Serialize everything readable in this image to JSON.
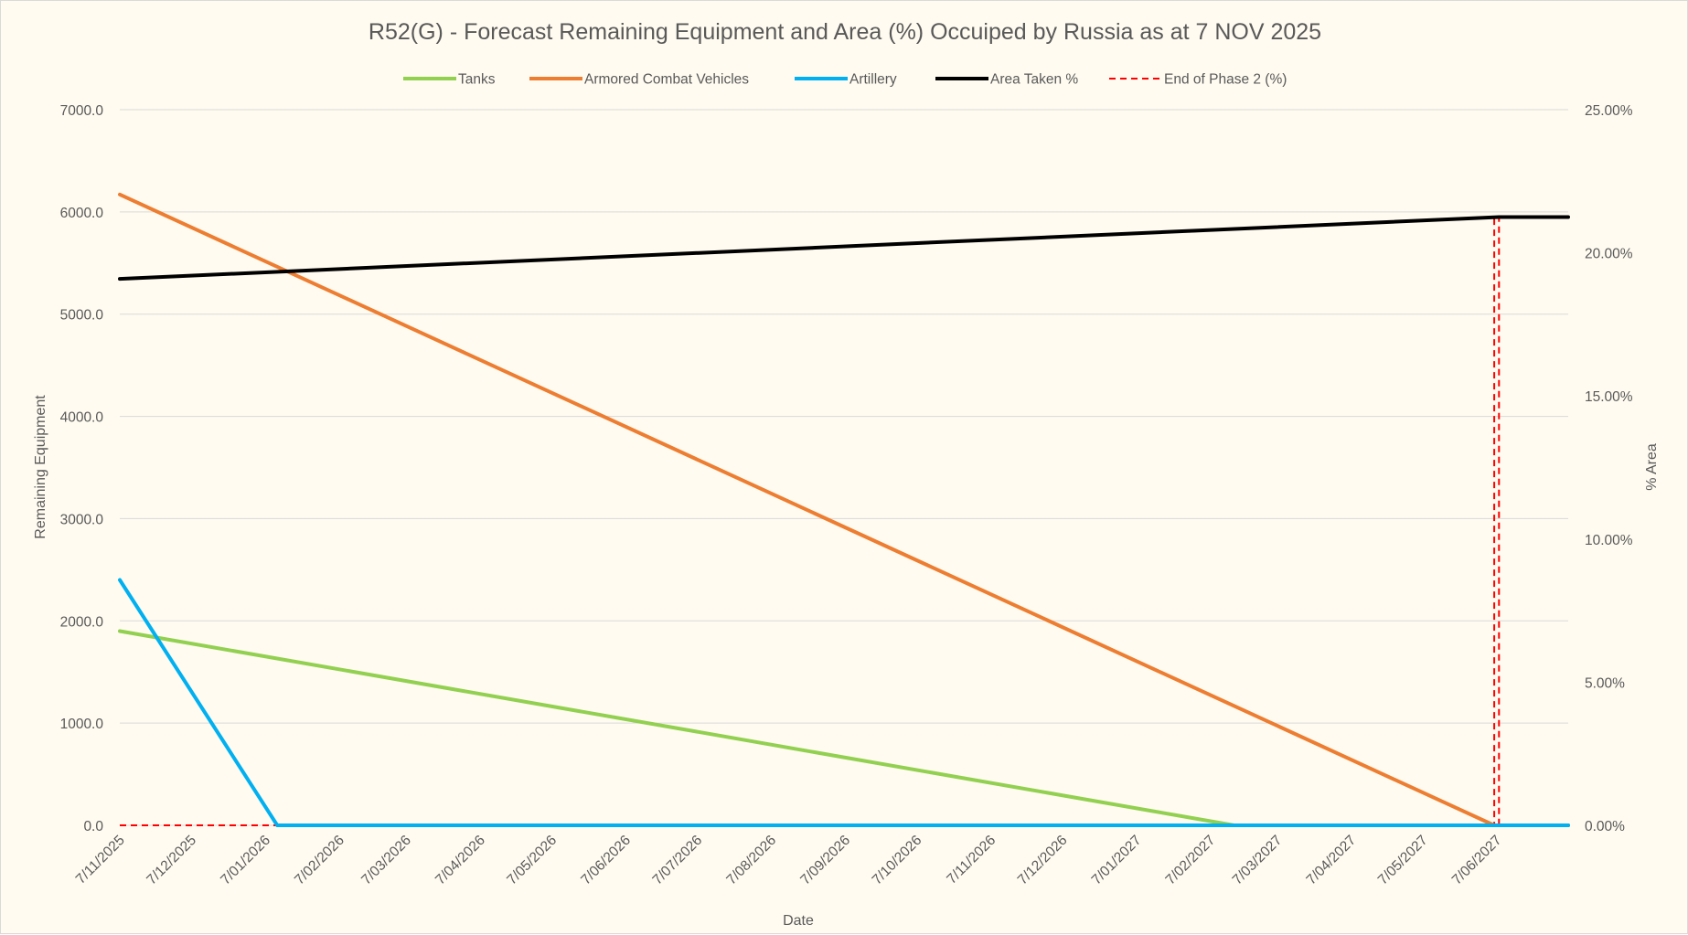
{
  "chart_data": {
    "type": "line",
    "title": "R52(G) - Forecast Remaining Equipment and Area (%) Occuiped by Russia as at 7 NOV 2025",
    "xlabel": "Date",
    "ylabel": "Remaining Equipment",
    "y2label": "% Area",
    "ylim": [
      0,
      7000
    ],
    "y2lim": [
      0,
      0.25
    ],
    "y_ticks": [
      "0.0",
      "1000.0",
      "2000.0",
      "3000.0",
      "4000.0",
      "5000.0",
      "6000.0",
      "7000.0"
    ],
    "y2_ticks": [
      "0.00%",
      "5.00%",
      "10.00%",
      "15.00%",
      "20.00%",
      "25.00%"
    ],
    "x_range": [
      "2025-11-07",
      "2027-07-07"
    ],
    "x_ticks": [
      "7/11/2025",
      "7/12/2025",
      "7/01/2026",
      "7/02/2026",
      "7/03/2026",
      "7/04/2026",
      "7/05/2026",
      "7/06/2026",
      "7/07/2026",
      "7/08/2026",
      "7/09/2026",
      "7/10/2026",
      "7/11/2026",
      "7/12/2026",
      "7/01/2027",
      "7/02/2027",
      "7/03/2027",
      "7/04/2027",
      "7/05/2027",
      "7/06/2027"
    ],
    "grid": true,
    "legend_position": "top",
    "series": [
      {
        "name": "Tanks",
        "axis": "left",
        "color": "#92d050",
        "style": "solid",
        "points": [
          [
            "2025-11-07",
            1900
          ],
          [
            "2027-02-17",
            0
          ],
          [
            "2027-07-07",
            0
          ]
        ]
      },
      {
        "name": "Armored Combat Vehicles",
        "axis": "left",
        "color": "#ed7d31",
        "style": "solid",
        "points": [
          [
            "2025-11-07",
            6170
          ],
          [
            "2027-06-06",
            0
          ],
          [
            "2027-07-07",
            0
          ]
        ]
      },
      {
        "name": "Artillery",
        "axis": "left",
        "color": "#00b0f0",
        "style": "solid",
        "points": [
          [
            "2025-11-07",
            2400
          ],
          [
            "2026-01-12",
            0
          ],
          [
            "2027-07-07",
            0
          ]
        ]
      },
      {
        "name": "Area Taken %",
        "axis": "right",
        "color": "#000000",
        "style": "solid",
        "points": [
          [
            "2025-11-07",
            0.1909
          ],
          [
            "2027-06-08",
            0.2125
          ],
          [
            "2027-07-07",
            0.2125
          ]
        ]
      },
      {
        "name": "End of Phase 2 (%)",
        "axis": "right",
        "color": "#ff0000",
        "style": "dashed",
        "points": [
          [
            "2025-11-07",
            0
          ],
          [
            "2027-06-06",
            0
          ],
          [
            "2027-06-06",
            0.2125
          ],
          [
            "2027-06-08",
            0.2125
          ],
          [
            "2027-06-08",
            0
          ],
          [
            "2027-07-07",
            0
          ]
        ]
      }
    ]
  }
}
